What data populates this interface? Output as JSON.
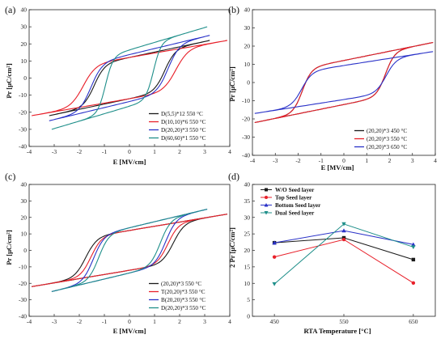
{
  "colors": {
    "black": "#1a1a1a",
    "red": "#e8202a",
    "blue": "#2a32c8",
    "teal": "#1f8f8a"
  },
  "chart_data": [
    {
      "type": "line",
      "panel_label": "(a)",
      "xlabel": "E [MV/cm]",
      "ylabel": "Pr [μC/cm²]",
      "xlim": [
        -4,
        4
      ],
      "ylim": [
        -40,
        40
      ],
      "xticks": [
        "-4",
        "-3",
        "-2",
        "-1",
        "0",
        "1",
        "2",
        "3",
        "4"
      ],
      "yticks": [
        "-40",
        "-30",
        "-20",
        "-10",
        "0",
        "10",
        "20",
        "30",
        "40"
      ],
      "legend_position": "bottom-right",
      "series": [
        {
          "name": "D(5,5)*12 550 °C",
          "color": "#1a1a1a",
          "emax": 3.2,
          "pmax": 22,
          "pr": 10,
          "ec": 1.2,
          "w": 0.42
        },
        {
          "name": "D(10,10)*6 550 °C",
          "color": "#e8202a",
          "emax": 3.9,
          "pmax": 22,
          "pr": 10,
          "ec": 1.6,
          "w": 0.5
        },
        {
          "name": "D(20,20)*3 550 °C",
          "color": "#2a32c8",
          "emax": 3.2,
          "pmax": 25,
          "pr": 12,
          "ec": 1.3,
          "w": 0.45
        },
        {
          "name": "D(60,60)*1 550 °C",
          "color": "#1f8f8a",
          "emax": 3.1,
          "pmax": 30,
          "pr": 18,
          "ec": 0.75,
          "w": 0.3
        }
      ]
    },
    {
      "type": "line",
      "panel_label": "(b)",
      "xlabel": "E [MV/cm]",
      "ylabel": "Pr [μC/cm²]",
      "xlim": [
        -4,
        4
      ],
      "ylim": [
        -40,
        40
      ],
      "xticks": [
        "-4",
        "-3",
        "-2",
        "-1",
        "0",
        "1",
        "2",
        "3",
        "4"
      ],
      "yticks": [
        "-40",
        "-30",
        "-20",
        "-10",
        "0",
        "10",
        "20",
        "30",
        "40"
      ],
      "legend_position": "bottom-right",
      "series": [
        {
          "name": "(20,20)*3 450 °C",
          "color": "#1a1a1a",
          "emax": 3.9,
          "pmax": 22,
          "pr": 11,
          "ec": 1.6,
          "w": 0.4
        },
        {
          "name": "(20,20)*3 550 °C",
          "color": "#e8202a",
          "emax": 3.9,
          "pmax": 22,
          "pr": 11,
          "ec": 1.6,
          "w": 0.4
        },
        {
          "name": "(20,20)*3 650 °C",
          "color": "#2a32c8",
          "emax": 3.9,
          "pmax": 17,
          "pr": 8.5,
          "ec": 1.6,
          "w": 0.45
        }
      ]
    },
    {
      "type": "line",
      "panel_label": "(c)",
      "xlabel": "E [MV/cm]",
      "ylabel": "Pr [μC/cm²]",
      "xlim": [
        -4,
        4
      ],
      "ylim": [
        -40,
        40
      ],
      "xticks": [
        "-4",
        "-3",
        "-2",
        "-1",
        "0",
        "1",
        "2",
        "3",
        "4"
      ],
      "yticks": [
        "-40",
        "-30",
        "-20",
        "-10",
        "0",
        "10",
        "20",
        "30",
        "40"
      ],
      "legend_position": "bottom-right",
      "series": [
        {
          "name": "(20,20)*3 550 °C",
          "color": "#1a1a1a",
          "emax": 3.9,
          "pmax": 22,
          "pr": 11,
          "ec": 1.5,
          "w": 0.45
        },
        {
          "name": "T(20,20)*3 550 °C",
          "color": "#e8202a",
          "emax": 3.9,
          "pmax": 22,
          "pr": 11,
          "ec": 1.3,
          "w": 0.42
        },
        {
          "name": "B(20,20)*3 550 °C",
          "color": "#2a32c8",
          "emax": 3.1,
          "pmax": 25,
          "pr": 13,
          "ec": 1.2,
          "w": 0.42
        },
        {
          "name": "D(20,20)*3 550 °C",
          "color": "#1f8f8a",
          "emax": 3.1,
          "pmax": 25,
          "pr": 13,
          "ec": 1.0,
          "w": 0.4
        }
      ]
    },
    {
      "type": "line",
      "panel_label": "(d)",
      "xlabel": "RTA Temperature [°C]",
      "ylabel": "2 Pr [μC/cm²]",
      "categories": [
        "450",
        "550",
        "650"
      ],
      "ylim": [
        0,
        40
      ],
      "yticks": [
        "0",
        "5",
        "10",
        "15",
        "20",
        "25",
        "30",
        "35",
        "40"
      ],
      "legend_position": "top-left",
      "series": [
        {
          "name": "W/O Seed layer",
          "color": "#1a1a1a",
          "marker": "square",
          "values": [
            22.3,
            23.8,
            17.2
          ]
        },
        {
          "name": "Top Seed layer",
          "color": "#e8202a",
          "marker": "circle",
          "values": [
            18.0,
            23.3,
            10.1
          ]
        },
        {
          "name": "Bottom Seed layer",
          "color": "#2a32c8",
          "marker": "triangle-up",
          "values": [
            22.3,
            26.0,
            21.8
          ]
        },
        {
          "name": "Dual Seed layer",
          "color": "#1f8f8a",
          "marker": "triangle-down",
          "values": [
            9.8,
            28.0,
            21.0
          ]
        }
      ]
    }
  ]
}
